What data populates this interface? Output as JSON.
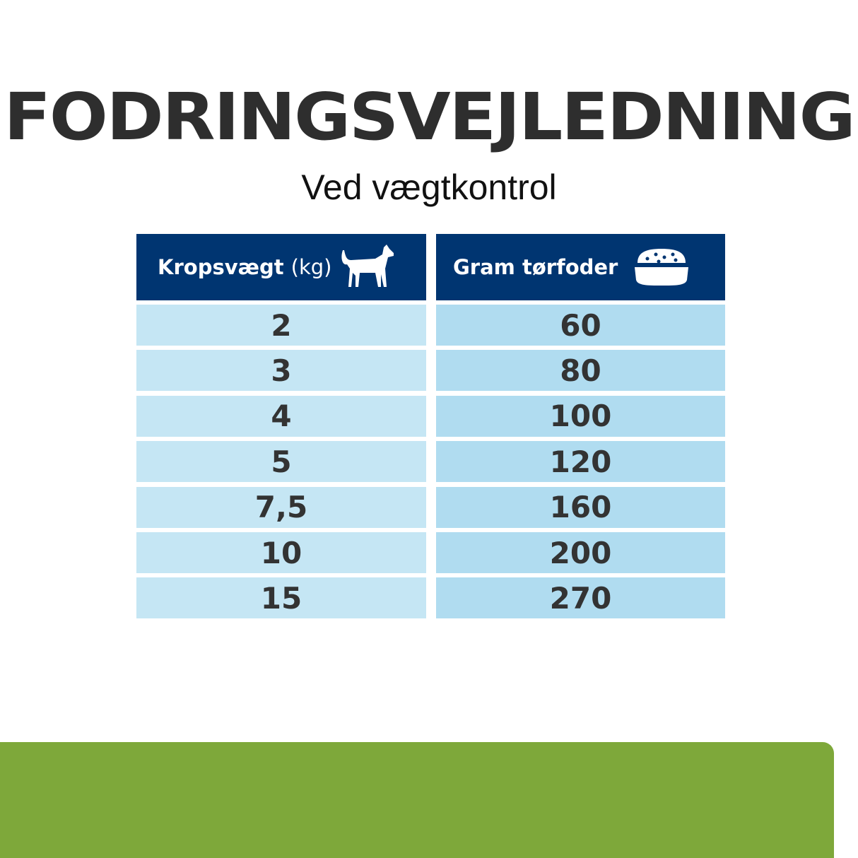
{
  "title": "FODRINGSVEJLEDNING",
  "subtitle": "Ved vægtkontrol",
  "table": {
    "headers": [
      {
        "label": "Kropsvægt",
        "unit": "(kg)",
        "icon": "dog-icon"
      },
      {
        "label": "Gram tørfoder",
        "icon": "food-bowl-icon"
      }
    ],
    "rows": [
      [
        "2",
        "60"
      ],
      [
        "3",
        "80"
      ],
      [
        "4",
        "100"
      ],
      [
        "5",
        "120"
      ],
      [
        "7,5",
        "160"
      ],
      [
        "10",
        "200"
      ],
      [
        "15",
        "270"
      ]
    ]
  },
  "colors": {
    "header": "#003571",
    "left_cells": "#c5e6f4",
    "right_cells": "#b0dcf0",
    "footer": "#7ea83a"
  }
}
